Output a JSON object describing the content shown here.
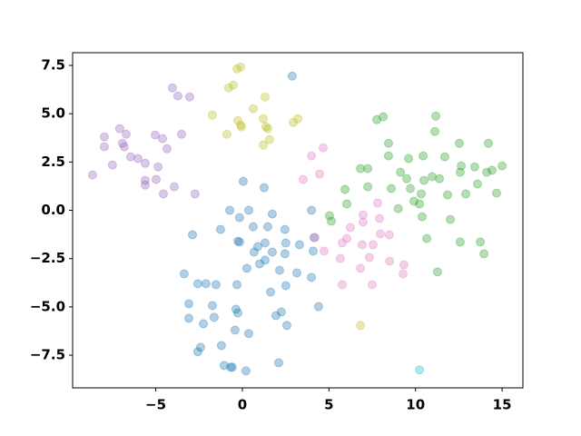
{
  "chart_data": {
    "type": "scatter",
    "xlim": [
      -9.8,
      16.2
    ],
    "ylim": [
      -9.19,
      8.16
    ],
    "xticks": [
      {
        "value": -5,
        "label": "−5"
      },
      0,
      5,
      10,
      15
    ],
    "yticks": [
      {
        "value": -7.5,
        "label": "−7.5"
      },
      {
        "value": -5,
        "label": "−5.0"
      },
      {
        "value": -2.5,
        "label": "−2.5"
      },
      {
        "value": 0,
        "label": "0.0"
      },
      2.5,
      {
        "value": 5,
        "label": "5.0"
      },
      7.5
    ],
    "alpha": 0.35,
    "series": [
      {
        "color": "#9467bd",
        "x": [
          -8.65,
          -7.97,
          -7.97,
          -7.5,
          -7.08,
          -6.92,
          -6.82,
          -6.71,
          -6.45,
          -6.03,
          -5.61,
          -5.61,
          -5.61,
          -5.03,
          -4.87,
          -4.61,
          -4.98,
          -4.56,
          -4.35,
          -4.04,
          -3.93,
          -3.72,
          -3.51,
          -3.04,
          -2.73
        ],
        "values": [
          1.83,
          3.8,
          3.29,
          2.35,
          4.23,
          3.47,
          3.29,
          3.94,
          2.77,
          2.68,
          2.44,
          1.55,
          1.31,
          3.9,
          2.25,
          3.71,
          1.6,
          0.85,
          3.19,
          6.34,
          1.22,
          5.92,
          3.94,
          5.87,
          0.85
        ]
      },
      {
        "color": "#bcbd22",
        "x": [
          -1.73,
          -0.79,
          -0.52,
          -0.31,
          -0.1,
          -0.89,
          -0.26,
          -0.05,
          -0.1,
          0.63,
          1.31,
          1.21,
          1.36,
          1.47,
          1.57,
          1.21,
          2.94,
          3.2,
          6.82
        ],
        "values": [
          4.93,
          6.34,
          6.48,
          7.32,
          7.42,
          3.94,
          4.65,
          4.32,
          4.41,
          5.26,
          5.87,
          4.74,
          4.32,
          4.23,
          3.66,
          3.38,
          4.55,
          4.74,
          -5.96
        ]
      },
      {
        "color": "#1f77b4",
        "x": [
          2.88,
          0.05,
          1.26,
          -0.73,
          -0.16,
          0.37,
          -2.88,
          -1.26,
          -0.26,
          -0.16,
          0.63,
          1.47,
          1.73,
          2.46,
          0.68,
          1.31,
          0.89,
          1.73,
          2.51,
          3.3,
          3.99,
          4.14,
          4.09,
          0.26,
          1.0,
          1.31,
          2.15,
          2.46,
          3.15,
          3.99,
          -3.36,
          -2.57,
          -2.1,
          -1.52,
          -0.31,
          1.63,
          2.51,
          -3.09,
          -3.09,
          -1.73,
          -1.63,
          -0.37,
          -0.26,
          -2.25,
          0.37,
          -0.42,
          1.94,
          2.25,
          2.57,
          4.4,
          -1.21,
          -2.41,
          -2.57,
          -1.05,
          -0.68,
          -0.58,
          0.21,
          2.1
        ],
        "values": [
          6.95,
          1.5,
          1.17,
          0,
          -0.38,
          0,
          -1.27,
          -0.99,
          -1.6,
          -1.64,
          -0.85,
          -0.85,
          -0.19,
          -0.99,
          -2.16,
          -1.69,
          -1.88,
          -2.16,
          -1.69,
          -1.78,
          0,
          -1.41,
          -2.11,
          -3.0,
          -2.77,
          -2.58,
          -3.1,
          -2.25,
          -3.24,
          -3.47,
          -3.29,
          -3.8,
          -3.8,
          -3.85,
          -3.85,
          -4.23,
          -3.9,
          -4.84,
          -5.59,
          -4.93,
          -5.54,
          -5.12,
          -5.31,
          -5.87,
          -6.38,
          -6.2,
          -5.45,
          -5.26,
          -5.96,
          -4.98,
          -7.0,
          -7.09,
          -7.32,
          -8.03,
          -8.12,
          -8.12,
          -8.31,
          -7.89
        ]
      },
      {
        "color": "#e377c2",
        "x": [
          3.99,
          4.67,
          4.46,
          3.51,
          4.2,
          4.72,
          5.66,
          6.24,
          5.77,
          6.03,
          6.97,
          6.97,
          6.92,
          7.55,
          7.92,
          7.81,
          7.97,
          8.49,
          8.5,
          6.82,
          7.34,
          5.77,
          7.5,
          9.33,
          9.28
        ],
        "values": [
          2.82,
          3.24,
          1.88,
          1.6,
          -1.41,
          -2.11,
          -2.49,
          -0.89,
          -1.69,
          -1.46,
          -0.23,
          -0.61,
          -1.78,
          -1.78,
          -0.42,
          0.38,
          -1.22,
          -1.27,
          -2.63,
          -3.0,
          -2.44,
          -3.85,
          -3.85,
          -2.82,
          -3.29
        ]
      },
      {
        "color": "#2ca02c",
        "x": [
          5.03,
          5.14,
          5.93,
          6.03,
          6.82,
          7.24,
          7.24,
          7.76,
          8.13,
          8.44,
          8.44,
          8.6,
          9.13,
          9.49,
          9.6,
          9.0,
          9.7,
          9.91,
          10.23,
          10.44,
          10.49,
          10.33,
          10.38,
          10.65,
          10.96,
          11.12,
          11.17,
          11.38,
          11.69,
          11.85,
          12.01,
          11.27,
          12.53,
          12.64,
          12.58,
          12.58,
          12.9,
          13.42,
          13.58,
          13.74,
          13.95,
          14.11,
          14.21,
          14.42,
          14.68,
          15.0
        ],
        "values": [
          -0.28,
          -0.56,
          1.08,
          0.33,
          2.16,
          2.16,
          1.22,
          4.69,
          4.84,
          3.47,
          2.82,
          1.13,
          1.97,
          1.64,
          2.68,
          0.09,
          1.13,
          0.47,
          0.33,
          2.82,
          1.55,
          0.85,
          -0.33,
          -1.46,
          1.74,
          4.08,
          4.88,
          1.64,
          2.77,
          0.8,
          -0.47,
          -3.19,
          3.47,
          2.3,
          1.97,
          -1.64,
          0.85,
          2.25,
          1.36,
          -1.64,
          -2.25,
          1.97,
          3.47,
          2.07,
          0.89,
          2.3
        ]
      },
      {
        "color": "#17becf",
        "x": [
          10.23
        ],
        "values": [
          -8.26
        ]
      }
    ]
  }
}
